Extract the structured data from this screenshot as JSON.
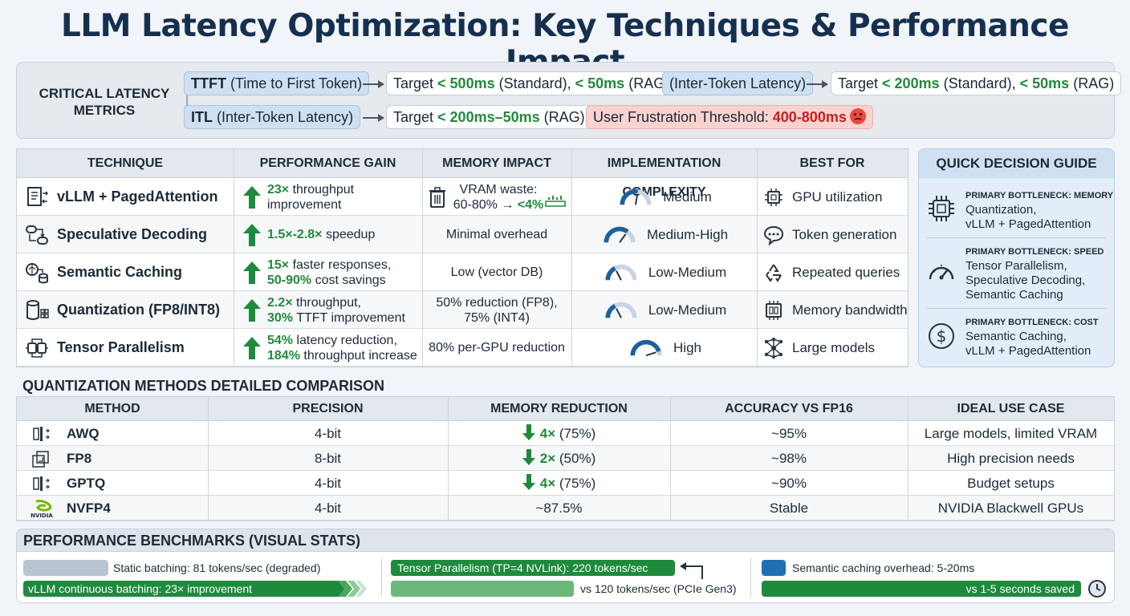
{
  "title": "LLM Latency Optimization: Key Techniques & Performance Impact",
  "critical": {
    "label_line1": "CRITICAL LATENCY",
    "label_line2": "METRICS",
    "ttft_abbr": "TTFT",
    "ttft_desc": " (Time to First Token)",
    "ttft_target_pre": "Target ",
    "ttft_target_v1": "< 500ms",
    "ttft_target_mid": " (Standard), ",
    "ttft_target_v2": "< 50ms",
    "ttft_target_post": " (RAG)",
    "itl_pill_top": "(Inter-Token Latency)",
    "itl_target_pre": "Target ",
    "itl_target_v1": "< 200ms",
    "itl_target_mid": " (Standard), ",
    "itl_target_v2": "< 50ms",
    "itl_target_post": " (RAG)",
    "itl_abbr": "ITL",
    "itl_desc": " (Inter-Token Latency)",
    "itl2_target_pre": "Target ",
    "itl2_target_v": "< 200ms–50ms",
    "itl2_target_post": " (RAG)",
    "frustration_pre": "User Frustration Threshold: ",
    "frustration_v": "400-800ms"
  },
  "techniques": {
    "headers": [
      "TECHNIQUE",
      "PERFORMANCE GAIN",
      "MEMORY IMPACT",
      "IMPLEMENTATION COMPLEXITY",
      "BEST FOR"
    ],
    "rows": [
      {
        "name": "vLLM + PagedAttention",
        "icon": "document-icon",
        "gain_b1": "23×",
        "gain_t1": " throughput",
        "gain_b2": "",
        "gain_t2": "improvement",
        "mem1": "VRAM waste:",
        "mem2": "60-80% → ",
        "mem2b": "<4%",
        "complexity": "Medium",
        "level": 0.55,
        "best": "GPU utilization",
        "best_icon": "chip-icon"
      },
      {
        "name": "Speculative Decoding",
        "icon": "flow-icon",
        "gain_b1": "1.5×-2.8×",
        "gain_t1": " speedup",
        "gain_b2": "",
        "gain_t2": "",
        "mem1": "Minimal overhead",
        "mem2": "",
        "mem2b": "",
        "complexity": "Medium-High",
        "level": 0.7,
        "best": "Token generation",
        "best_icon": "chat-icon"
      },
      {
        "name": "Semantic Caching",
        "icon": "brain-db-icon",
        "gain_b1": "15×",
        "gain_t1": " faster responses,",
        "gain_b2": "50-90%",
        "gain_t2": " cost savings",
        "mem1": "Low (vector DB)",
        "mem2": "",
        "mem2b": "",
        "complexity": "Low-Medium",
        "level": 0.35,
        "best": "Repeated queries",
        "best_icon": "recycle-icon"
      },
      {
        "name": "Quantization (FP8/INT8)",
        "icon": "database-icon",
        "gain_b1": "2.2×",
        "gain_t1": " throughput,",
        "gain_b2": "30%",
        "gain_t2": " TTFT improvement",
        "mem1": "50% reduction (FP8),",
        "mem2": "75% (INT4)",
        "mem2b": "",
        "complexity": "Low-Medium",
        "level": 0.35,
        "best": "Memory bandwidth",
        "best_icon": "memory-icon"
      },
      {
        "name": "Tensor Parallelism",
        "icon": "gpu-cluster-icon",
        "gain_b1": "54%",
        "gain_t1": " latency reduction,",
        "gain_b2": "184%",
        "gain_t2": " throughput increase",
        "mem1": "80% per-GPU reduction",
        "mem2": "",
        "mem2b": "",
        "complexity": "High",
        "level": 0.9,
        "best": "Large models",
        "best_icon": "network-icon"
      }
    ]
  },
  "guide": {
    "title": "QUICK DECISION GUIDE",
    "items": [
      {
        "icon": "chip-icon",
        "title": "PRIMARY BOTTLENECK: MEMORY",
        "line1": "Quantization,",
        "line2": "vLLM + PagedAttention",
        "line3": ""
      },
      {
        "icon": "speedometer-icon",
        "title": "PRIMARY BOTTLENECK: SPEED",
        "line1": "Tensor Parallelism,",
        "line2": "Speculative Decoding,",
        "line3": "Semantic Caching"
      },
      {
        "icon": "dollar-icon",
        "title": "PRIMARY BOTTLENECK: COST",
        "line1": "Semantic Caching,",
        "line2": "vLLM + PagedAttention",
        "line3": ""
      }
    ]
  },
  "quant": {
    "title": "QUANTIZATION METHODS DETAILED COMPARISON",
    "headers": [
      "METHOD",
      "PRECISION",
      "MEMORY REDUCTION",
      "ACCURACY VS FP16",
      "IDEAL USE CASE"
    ],
    "rows": [
      {
        "icon": "sliders-icon",
        "name": "AWQ",
        "precision": "4-bit",
        "red_b": "4×",
        "red_t": " (75%)",
        "down": true,
        "accuracy": "~95%",
        "use": "Large models, limited VRAM"
      },
      {
        "icon": "layers-icon",
        "name": "FP8",
        "precision": "8-bit",
        "red_b": "2×",
        "red_t": " (50%)",
        "down": true,
        "accuracy": "~98%",
        "use": "High precision needs"
      },
      {
        "icon": "sliders-icon",
        "name": "GPTQ",
        "precision": "4-bit",
        "red_b": "4×",
        "red_t": " (75%)",
        "down": true,
        "accuracy": "~90%",
        "use": "Budget setups"
      },
      {
        "icon": "nvidia-logo-icon",
        "name": "NVFP4",
        "precision": "4-bit",
        "red_b": "",
        "red_t": "~87.5%",
        "down": false,
        "accuracy": "Stable",
        "use": "NVIDIA Blackwell GPUs"
      }
    ],
    "nvidia_logo_text": "NVIDIA"
  },
  "bench": {
    "title": "PERFORMANCE BENCHMARKS (VISUAL STATS)",
    "static": "Static batching: 81 tokens/sec (degraded)",
    "vllm": "vLLM continuous batching: 23× improvement",
    "tp": "Tensor Parallelism (TP=4 NVLink): 220 tokens/sec",
    "pcie": "vs 120 tokens/sec (PCIe Gen3)",
    "cache": "Semantic caching overhead: 5-20ms",
    "saved": "vs 1-5 seconds saved",
    "colors": {
      "green": "#1e8a3c",
      "grey": "#b9c4cf",
      "blue": "#1f6fb5"
    }
  }
}
